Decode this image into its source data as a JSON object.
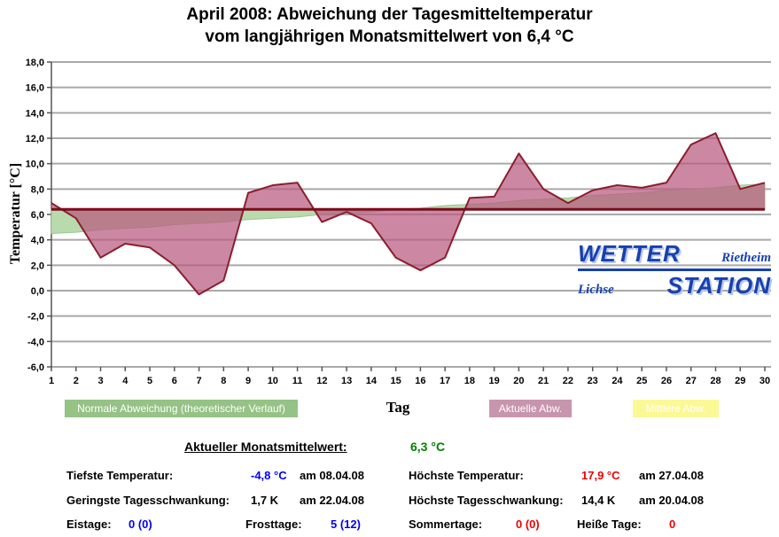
{
  "title": {
    "line1": "April 2008: Abweichung der Tagesmitteltemperatur",
    "line2": "vom langjährigen Monatsmittelwert von 6,4 °C"
  },
  "chart_data": {
    "type": "area",
    "title": "April 2008: Abweichung der Tagesmitteltemperatur vom langjährigen Monatsmittelwert von 6,4 °C",
    "xlabel": "Tag",
    "ylabel": "Temperatur [°C]",
    "x": [
      1,
      2,
      3,
      4,
      5,
      6,
      7,
      8,
      9,
      10,
      11,
      12,
      13,
      14,
      15,
      16,
      17,
      18,
      19,
      20,
      21,
      22,
      23,
      24,
      25,
      26,
      27,
      28,
      29,
      30
    ],
    "ylim": [
      -6,
      18
    ],
    "ytick_step": 2,
    "ytick_labels": [
      "18,0",
      "16,0",
      "14,0",
      "12,0",
      "10,0",
      "8,0",
      "6,0",
      "4,0",
      "2,0",
      "0,0",
      "-2,0",
      "-4,0",
      "-6,0"
    ],
    "grid": true,
    "legend_position": "bottom",
    "reference_line": {
      "name": "langjähriger Monatsmittelwert",
      "value": 6.4,
      "color": "#7a0c1c"
    },
    "series": [
      {
        "name": "Normale Abweichung (theoretischer Verlauf)",
        "values": [
          4.5,
          4.6,
          4.8,
          4.9,
          5.0,
          5.2,
          5.3,
          5.4,
          5.6,
          5.7,
          5.8,
          6.0,
          6.1,
          6.2,
          6.4,
          6.5,
          6.7,
          6.8,
          6.9,
          7.1,
          7.2,
          7.3,
          7.5,
          7.6,
          7.7,
          7.9,
          8.0,
          8.1,
          8.3,
          8.4
        ],
        "fill": "#b9daad",
        "stroke": "#9cc694",
        "fill_opacity": 1
      },
      {
        "name": "Aktuelle Abw.",
        "values": [
          6.9,
          5.7,
          2.6,
          3.7,
          3.4,
          2.0,
          -0.3,
          0.8,
          7.7,
          8.3,
          8.5,
          5.4,
          6.2,
          5.3,
          2.6,
          1.6,
          2.6,
          7.3,
          7.4,
          10.8,
          8.0,
          6.9,
          7.9,
          8.3,
          8.1,
          8.5,
          11.5,
          12.4,
          8.0,
          8.5
        ],
        "fill": "#b85a80",
        "stroke": "#8b1e2e",
        "fill_opacity": 0.72
      }
    ]
  },
  "legend": {
    "items": [
      {
        "label": "Normale Abweichung (theoretischer Verlauf)",
        "color": "#95c285"
      },
      {
        "label": "Aktuelle Abw.",
        "color": "#c795ad"
      },
      {
        "label": "Mittlere Abw.",
        "color": "#fbf896"
      }
    ]
  },
  "logo": {
    "wetter": "WETTER",
    "rietheim": "Rietheim",
    "lichse": "Lichse",
    "station": "STATION"
  },
  "stats": {
    "mean_label": "Aktueller Monatsmittelwert:",
    "mean_value": "6,3 °C",
    "rows_left": [
      {
        "label": "Tiefste Temperatur:",
        "value": "-4,8 °C",
        "date": "am 08.04.08"
      },
      {
        "label": "Geringste Tagesschwankung:",
        "value": "1,7 K",
        "date": "am 22.04.08"
      }
    ],
    "rows_right": [
      {
        "label": "Höchste Temperatur:",
        "value": "17,9 °C",
        "date": "am 27.04.08"
      },
      {
        "label": "Höchste Tagesschwankung:",
        "value": "14,4 K",
        "date": "am 20.04.08"
      }
    ],
    "day_counts": [
      {
        "label": "Eistage:",
        "value": "0 (0)"
      },
      {
        "label": "Frosttage:",
        "value": "5 (12)"
      },
      {
        "label": "Sommertage:",
        "value": "0 (0)"
      },
      {
        "label": "Heiße Tage:",
        "value": "0"
      }
    ]
  },
  "colors": {
    "blue": "#0000ee",
    "red": "#ee0000",
    "green": "#008000",
    "black": "#000000"
  }
}
